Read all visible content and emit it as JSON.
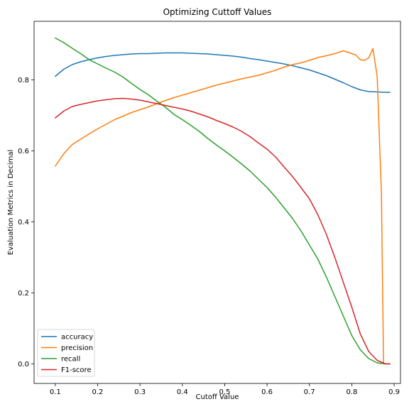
{
  "chart_data": {
    "type": "line",
    "title": "Optimizing Cuttoff Values",
    "xlabel": "Cutoff Value",
    "ylabel": "Evaluation Metrics in Decimal",
    "xlim": [
      0.05,
      0.915
    ],
    "ylim": [
      -0.055,
      0.965
    ],
    "xticks": [
      0.1,
      0.2,
      0.3,
      0.4,
      0.5,
      0.6,
      0.7,
      0.8,
      0.9
    ],
    "xtick_labels": [
      "0.1",
      "0.2",
      "0.3",
      "0.4",
      "0.5",
      "0.6",
      "0.7",
      "0.8",
      "0.9"
    ],
    "yticks": [
      0.0,
      0.2,
      0.4,
      0.6,
      0.8
    ],
    "ytick_labels": [
      "0.0",
      "0.2",
      "0.4",
      "0.6",
      "0.8"
    ],
    "grid": false,
    "legend_position": "lower-left",
    "series": [
      {
        "name": "accuracy",
        "color": "#1f77b4",
        "x": [
          0.1,
          0.12,
          0.14,
          0.16,
          0.18,
          0.2,
          0.22,
          0.24,
          0.26,
          0.28,
          0.3,
          0.32,
          0.34,
          0.36,
          0.38,
          0.4,
          0.42,
          0.44,
          0.46,
          0.48,
          0.5,
          0.52,
          0.54,
          0.56,
          0.58,
          0.6,
          0.62,
          0.64,
          0.66,
          0.68,
          0.7,
          0.72,
          0.74,
          0.76,
          0.78,
          0.8,
          0.82,
          0.84,
          0.86,
          0.88,
          0.89
        ],
        "y": [
          0.81,
          0.83,
          0.843,
          0.851,
          0.857,
          0.862,
          0.866,
          0.869,
          0.871,
          0.873,
          0.874,
          0.874,
          0.875,
          0.876,
          0.876,
          0.876,
          0.875,
          0.874,
          0.873,
          0.871,
          0.869,
          0.867,
          0.864,
          0.86,
          0.857,
          0.853,
          0.849,
          0.845,
          0.84,
          0.834,
          0.828,
          0.82,
          0.812,
          0.802,
          0.792,
          0.781,
          0.772,
          0.767,
          0.766,
          0.765,
          0.765
        ]
      },
      {
        "name": "precision",
        "color": "#ff7f0e",
        "x": [
          0.1,
          0.12,
          0.14,
          0.16,
          0.18,
          0.2,
          0.22,
          0.24,
          0.26,
          0.28,
          0.3,
          0.32,
          0.34,
          0.36,
          0.38,
          0.4,
          0.42,
          0.44,
          0.46,
          0.48,
          0.5,
          0.52,
          0.54,
          0.56,
          0.58,
          0.6,
          0.62,
          0.64,
          0.66,
          0.68,
          0.7,
          0.72,
          0.74,
          0.76,
          0.78,
          0.79,
          0.8,
          0.81,
          0.82,
          0.83,
          0.84,
          0.85,
          0.86,
          0.87,
          0.875
        ],
        "y": [
          0.557,
          0.592,
          0.618,
          0.633,
          0.648,
          0.662,
          0.675,
          0.688,
          0.698,
          0.708,
          0.716,
          0.724,
          0.733,
          0.742,
          0.75,
          0.757,
          0.764,
          0.771,
          0.778,
          0.785,
          0.791,
          0.797,
          0.803,
          0.808,
          0.813,
          0.82,
          0.827,
          0.836,
          0.843,
          0.848,
          0.855,
          0.863,
          0.868,
          0.874,
          0.882,
          0.878,
          0.874,
          0.87,
          0.857,
          0.855,
          0.862,
          0.888,
          0.81,
          0.48,
          0.0
        ]
      },
      {
        "name": "recall",
        "color": "#2ca02c",
        "x": [
          0.1,
          0.12,
          0.14,
          0.16,
          0.18,
          0.2,
          0.22,
          0.24,
          0.26,
          0.28,
          0.3,
          0.32,
          0.34,
          0.36,
          0.38,
          0.4,
          0.42,
          0.44,
          0.46,
          0.48,
          0.5,
          0.52,
          0.54,
          0.56,
          0.58,
          0.6,
          0.62,
          0.64,
          0.66,
          0.68,
          0.7,
          0.72,
          0.74,
          0.76,
          0.78,
          0.8,
          0.82,
          0.84,
          0.86,
          0.88,
          0.89
        ],
        "y": [
          0.918,
          0.905,
          0.889,
          0.874,
          0.857,
          0.845,
          0.833,
          0.822,
          0.808,
          0.79,
          0.773,
          0.758,
          0.74,
          0.723,
          0.703,
          0.688,
          0.672,
          0.655,
          0.635,
          0.617,
          0.6,
          0.582,
          0.563,
          0.543,
          0.52,
          0.497,
          0.47,
          0.44,
          0.41,
          0.375,
          0.335,
          0.295,
          0.245,
          0.19,
          0.135,
          0.08,
          0.04,
          0.015,
          0.003,
          0.0,
          0.0
        ]
      },
      {
        "name": "F1-score",
        "color": "#d62728",
        "x": [
          0.1,
          0.12,
          0.14,
          0.16,
          0.18,
          0.2,
          0.22,
          0.24,
          0.26,
          0.28,
          0.3,
          0.32,
          0.34,
          0.36,
          0.38,
          0.4,
          0.42,
          0.44,
          0.46,
          0.48,
          0.5,
          0.52,
          0.54,
          0.56,
          0.58,
          0.6,
          0.62,
          0.64,
          0.66,
          0.68,
          0.7,
          0.72,
          0.74,
          0.76,
          0.78,
          0.8,
          0.82,
          0.84,
          0.86,
          0.88,
          0.89
        ],
        "y": [
          0.693,
          0.712,
          0.725,
          0.731,
          0.736,
          0.741,
          0.744,
          0.747,
          0.748,
          0.746,
          0.743,
          0.738,
          0.733,
          0.728,
          0.723,
          0.718,
          0.712,
          0.704,
          0.696,
          0.686,
          0.677,
          0.667,
          0.655,
          0.64,
          0.622,
          0.605,
          0.583,
          0.555,
          0.528,
          0.497,
          0.465,
          0.42,
          0.365,
          0.3,
          0.23,
          0.16,
          0.085,
          0.035,
          0.01,
          0.0,
          0.0
        ]
      }
    ]
  }
}
